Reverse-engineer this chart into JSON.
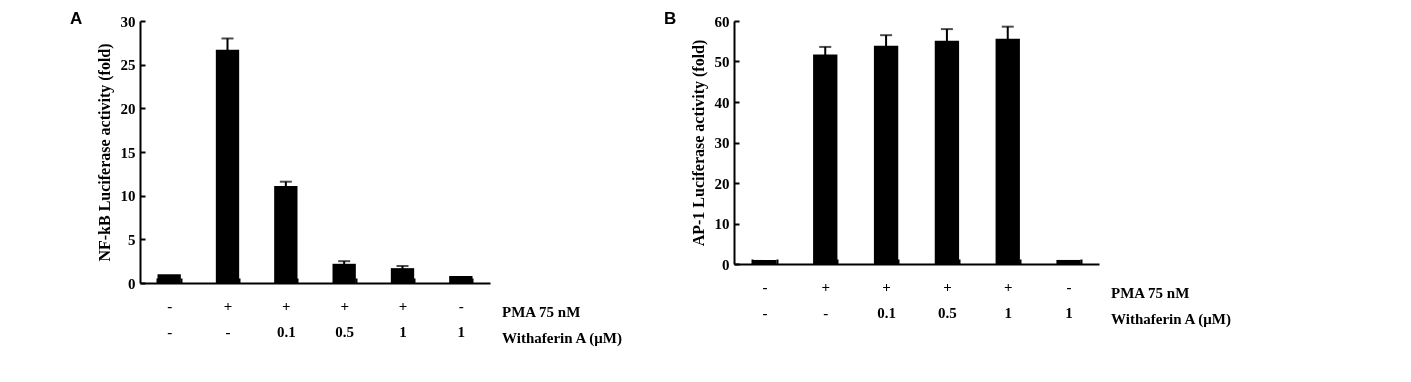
{
  "chart_data": [
    {
      "type": "bar",
      "title": "A",
      "ylabel": "NF-kB Luciferase activity (fold)",
      "categories": [
        "-\n-",
        "+\n-",
        "+\n0.1",
        "+\n0.5",
        "+\n1",
        "-\n1"
      ],
      "values": [
        1.0,
        26.7,
        11.1,
        2.2,
        1.7,
        0.8
      ],
      "errors": [
        null,
        1.3,
        0.5,
        0.3,
        0.25,
        null
      ],
      "color": "#000000",
      "ylim": [
        0,
        30
      ],
      "yticks": [
        0,
        5,
        10,
        15,
        20,
        25,
        30
      ],
      "annotations": [
        "PMA 75 nM",
        "Withaferin A (μM)"
      ]
    },
    {
      "type": "bar",
      "title": "B",
      "ylabel": "AP-1 Luciferase activity (fold)",
      "categories": [
        "-\n-",
        "+\n-",
        "+\n0.1",
        "+\n0.5",
        "+\n1",
        "-\n1"
      ],
      "values": [
        1.0,
        51.7,
        53.9,
        55.1,
        55.6,
        1.0
      ],
      "errors": [
        null,
        1.9,
        2.6,
        2.9,
        3.0,
        null
      ],
      "color": "#000000",
      "ylim": [
        0,
        60
      ],
      "yticks": [
        0,
        10,
        20,
        30,
        40,
        50,
        60
      ],
      "annotations": [
        "PMA 75 nM",
        "Withaferin A (μM)"
      ]
    }
  ]
}
